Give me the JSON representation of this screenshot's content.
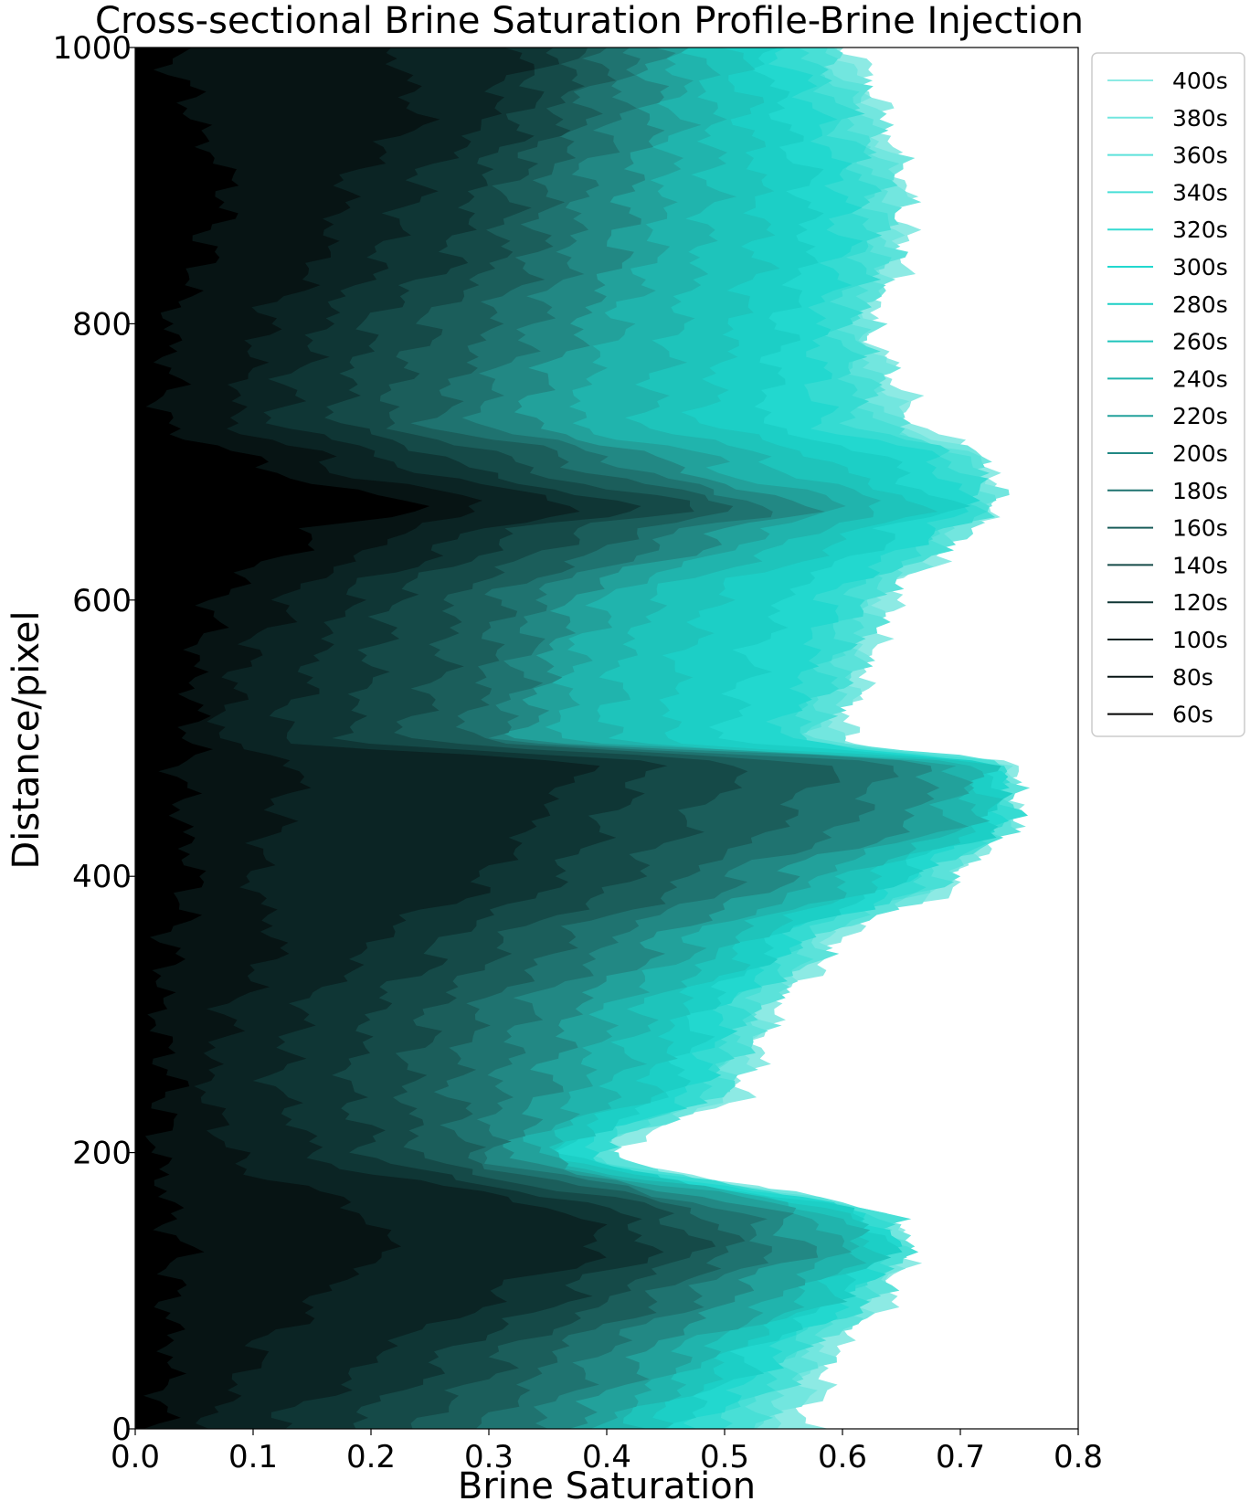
{
  "chart_data": {
    "type": "area",
    "title": "Cross-sectional Brine Saturation Profile-Brine Injection",
    "xlabel": "Brine Saturation",
    "ylabel": "Distance/pixel",
    "xlim": [
      0.0,
      0.8
    ],
    "ylim": [
      0,
      1000
    ],
    "xticks": [
      "0.0",
      "0.1",
      "0.2",
      "0.3",
      "0.4",
      "0.5",
      "0.6",
      "0.7",
      "0.8"
    ],
    "yticks": [
      "0",
      "200",
      "400",
      "600",
      "800",
      "1000"
    ],
    "grid": false,
    "legend_position": "outside-right",
    "profile_distance": [
      0,
      50,
      100,
      130,
      150,
      200,
      250,
      300,
      350,
      400,
      440,
      480,
      500,
      550,
      600,
      650,
      665,
      700,
      730,
      750,
      800,
      850,
      900,
      950,
      1000
    ],
    "series": [
      {
        "name": "60s",
        "color": "#000000",
        "values": [
          0.02,
          0.03,
          0.03,
          0.04,
          0.03,
          0.02,
          0.03,
          0.02,
          0.03,
          0.05,
          0.04,
          0.04,
          0.05,
          0.05,
          0.07,
          0.15,
          0.24,
          0.1,
          0.02,
          0.03,
          0.03,
          0.06,
          0.08,
          0.05,
          0.03
        ]
      },
      {
        "name": "80s",
        "color": "#071414",
        "values": [
          0.06,
          0.1,
          0.16,
          0.22,
          0.2,
          0.08,
          0.06,
          0.08,
          0.12,
          0.1,
          0.12,
          0.14,
          0.07,
          0.09,
          0.13,
          0.22,
          0.3,
          0.16,
          0.08,
          0.09,
          0.11,
          0.16,
          0.18,
          0.24,
          0.22
        ]
      },
      {
        "name": "100s",
        "color": "#0b2424",
        "values": [
          0.12,
          0.2,
          0.31,
          0.4,
          0.38,
          0.15,
          0.12,
          0.14,
          0.2,
          0.3,
          0.34,
          0.38,
          0.12,
          0.15,
          0.18,
          0.28,
          0.38,
          0.22,
          0.12,
          0.13,
          0.16,
          0.21,
          0.24,
          0.3,
          0.33
        ]
      },
      {
        "name": "120s",
        "color": "#0f3635",
        "values": [
          0.18,
          0.26,
          0.37,
          0.44,
          0.42,
          0.2,
          0.18,
          0.2,
          0.26,
          0.36,
          0.4,
          0.44,
          0.18,
          0.2,
          0.22,
          0.32,
          0.42,
          0.27,
          0.17,
          0.18,
          0.2,
          0.27,
          0.29,
          0.33,
          0.35
        ]
      },
      {
        "name": "140s",
        "color": "#154a48",
        "values": [
          0.24,
          0.31,
          0.41,
          0.48,
          0.46,
          0.24,
          0.23,
          0.25,
          0.31,
          0.42,
          0.47,
          0.52,
          0.23,
          0.26,
          0.27,
          0.37,
          0.47,
          0.32,
          0.21,
          0.22,
          0.25,
          0.31,
          0.32,
          0.36,
          0.38
        ]
      },
      {
        "name": "160s",
        "color": "#1b5e5b",
        "values": [
          0.3,
          0.35,
          0.45,
          0.51,
          0.49,
          0.28,
          0.27,
          0.29,
          0.36,
          0.47,
          0.55,
          0.59,
          0.28,
          0.3,
          0.31,
          0.42,
          0.51,
          0.37,
          0.25,
          0.27,
          0.3,
          0.34,
          0.35,
          0.38,
          0.4
        ]
      },
      {
        "name": "180s",
        "color": "#1f7370",
        "values": [
          0.34,
          0.39,
          0.48,
          0.54,
          0.52,
          0.3,
          0.31,
          0.33,
          0.4,
          0.51,
          0.61,
          0.64,
          0.31,
          0.33,
          0.34,
          0.46,
          0.54,
          0.41,
          0.29,
          0.3,
          0.34,
          0.37,
          0.38,
          0.41,
          0.42
        ]
      },
      {
        "name": "200s",
        "color": "#228884",
        "values": [
          0.37,
          0.43,
          0.51,
          0.57,
          0.55,
          0.32,
          0.35,
          0.37,
          0.44,
          0.55,
          0.66,
          0.68,
          0.33,
          0.35,
          0.37,
          0.5,
          0.57,
          0.45,
          0.33,
          0.34,
          0.38,
          0.41,
          0.42,
          0.44,
          0.44
        ]
      },
      {
        "name": "220s",
        "color": "#22a19b",
        "values": [
          0.4,
          0.46,
          0.55,
          0.6,
          0.58,
          0.34,
          0.38,
          0.4,
          0.47,
          0.58,
          0.69,
          0.7,
          0.36,
          0.37,
          0.4,
          0.53,
          0.6,
          0.49,
          0.37,
          0.38,
          0.41,
          0.44,
          0.45,
          0.46,
          0.46
        ]
      },
      {
        "name": "240s",
        "color": "#20b4ad",
        "values": [
          0.42,
          0.48,
          0.57,
          0.62,
          0.6,
          0.35,
          0.41,
          0.43,
          0.5,
          0.61,
          0.71,
          0.71,
          0.4,
          0.41,
          0.44,
          0.57,
          0.64,
          0.54,
          0.43,
          0.44,
          0.46,
          0.48,
          0.49,
          0.49,
          0.48
        ]
      },
      {
        "name": "260s",
        "color": "#1ec4bb",
        "values": [
          0.44,
          0.5,
          0.59,
          0.63,
          0.61,
          0.36,
          0.44,
          0.46,
          0.52,
          0.63,
          0.72,
          0.72,
          0.45,
          0.46,
          0.49,
          0.61,
          0.67,
          0.59,
          0.48,
          0.49,
          0.51,
          0.53,
          0.53,
          0.52,
          0.51
        ]
      },
      {
        "name": "280s",
        "color": "#1ccfc6",
        "values": [
          0.46,
          0.52,
          0.6,
          0.64,
          0.62,
          0.37,
          0.46,
          0.48,
          0.54,
          0.65,
          0.73,
          0.73,
          0.5,
          0.52,
          0.55,
          0.64,
          0.69,
          0.64,
          0.53,
          0.54,
          0.55,
          0.57,
          0.57,
          0.55,
          0.53
        ]
      },
      {
        "name": "300s",
        "color": "#22d8cf",
        "values": [
          0.48,
          0.54,
          0.61,
          0.64,
          0.63,
          0.38,
          0.48,
          0.5,
          0.55,
          0.66,
          0.73,
          0.73,
          0.55,
          0.57,
          0.59,
          0.67,
          0.71,
          0.68,
          0.58,
          0.58,
          0.58,
          0.6,
          0.6,
          0.58,
          0.55
        ]
      },
      {
        "name": "320s",
        "color": "#35dbd2",
        "values": [
          0.5,
          0.55,
          0.62,
          0.64,
          0.63,
          0.39,
          0.49,
          0.51,
          0.56,
          0.67,
          0.74,
          0.73,
          0.56,
          0.59,
          0.61,
          0.68,
          0.72,
          0.7,
          0.61,
          0.61,
          0.6,
          0.62,
          0.62,
          0.6,
          0.57
        ]
      },
      {
        "name": "340s",
        "color": "#48dfd6",
        "values": [
          0.52,
          0.56,
          0.62,
          0.65,
          0.64,
          0.39,
          0.5,
          0.52,
          0.57,
          0.68,
          0.74,
          0.73,
          0.57,
          0.6,
          0.62,
          0.69,
          0.72,
          0.71,
          0.63,
          0.62,
          0.61,
          0.63,
          0.63,
          0.61,
          0.58
        ]
      },
      {
        "name": "360s",
        "color": "#5be2da",
        "values": [
          0.53,
          0.57,
          0.63,
          0.65,
          0.64,
          0.4,
          0.5,
          0.53,
          0.58,
          0.69,
          0.74,
          0.74,
          0.58,
          0.61,
          0.63,
          0.69,
          0.72,
          0.71,
          0.64,
          0.63,
          0.61,
          0.64,
          0.64,
          0.62,
          0.59
        ]
      },
      {
        "name": "380s",
        "color": "#72e6df",
        "values": [
          0.55,
          0.58,
          0.63,
          0.65,
          0.64,
          0.4,
          0.51,
          0.53,
          0.58,
          0.69,
          0.74,
          0.74,
          0.59,
          0.61,
          0.63,
          0.7,
          0.73,
          0.72,
          0.65,
          0.64,
          0.62,
          0.64,
          0.65,
          0.63,
          0.6
        ]
      },
      {
        "name": "400s",
        "color": "#8deae4",
        "values": [
          0.57,
          0.59,
          0.64,
          0.65,
          0.64,
          0.41,
          0.52,
          0.54,
          0.59,
          0.7,
          0.74,
          0.74,
          0.6,
          0.62,
          0.64,
          0.7,
          0.73,
          0.72,
          0.66,
          0.65,
          0.62,
          0.65,
          0.65,
          0.63,
          0.61
        ]
      }
    ]
  }
}
